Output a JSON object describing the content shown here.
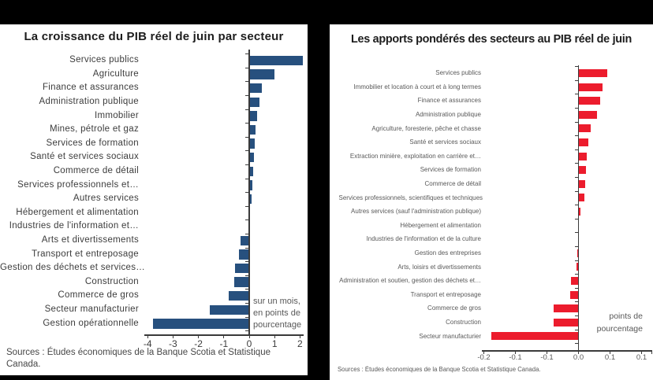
{
  "chart_data": [
    {
      "type": "bar",
      "orientation": "horizontal",
      "title": "La croissance du PIB réel de juin par secteur",
      "bar_color": "#27507E",
      "categories": [
        "Services publics",
        "Agriculture",
        "Finance et assurances",
        "Administration publique",
        "Immobilier",
        "Mines, pétrole et gaz",
        "Services de formation",
        "Santé et services sociaux",
        "Commerce de détail",
        "Services professionnels et…",
        "Autres services",
        "Hébergement et alimentation",
        "Industries de l'information et…",
        "Arts et divertissements",
        "Transport et entreposage",
        "Gestion des déchets et services…",
        "Construction",
        "Commerce de gros",
        "Secteur manufacturier",
        "Gestion opérationnelle"
      ],
      "values": [
        2.1,
        1.0,
        0.5,
        0.4,
        0.3,
        0.25,
        0.21,
        0.18,
        0.16,
        0.12,
        0.09,
        0.0,
        0.0,
        -0.35,
        -0.4,
        -0.57,
        -0.6,
        -0.8,
        -1.55,
        -3.8
      ],
      "xlim": [
        -4.2,
        2.2
      ],
      "grid": false,
      "x_ticks": [
        {
          "label": "-4",
          "value": -4
        },
        {
          "label": "-3",
          "value": -3
        },
        {
          "label": "-2",
          "value": -2
        },
        {
          "label": "-1",
          "value": -1
        },
        {
          "label": "0",
          "value": 0
        },
        {
          "label": "1",
          "value": 1
        },
        {
          "label": "2",
          "value": 2
        }
      ],
      "annotation_lines": [
        "sur un mois,",
        "en points de",
        "pourcentage"
      ],
      "source": "Sources : Études économiques de la Banque Scotia et Statistique Canada."
    },
    {
      "type": "bar",
      "orientation": "horizontal",
      "title": "Les apports pondérés des secteurs au PIB réel de juin",
      "bar_color": "#EC1C2D",
      "categories": [
        "Services publics",
        "Immobilier et location à court et à long termes",
        "Finance et assurances",
        "Administration publique",
        "Agriculture, foresterie, pêche et chasse",
        "Santé et services sociaux",
        "Extraction minière, exploitation en carrière et…",
        "Services de formation",
        "Commerce de détail",
        "Services professionnels, scientifiques et techniques",
        "Autres services (sauf l'administration publique)",
        "Hébergement et alimentation",
        "Industries de l'information et de la culture",
        "Gestion des entreprises",
        "Arts, loisirs et divertissements",
        "Administration et soutien, gestion des déchets et…",
        "Transport et entreposage",
        "Commerce de gros",
        "Construction",
        "Secteur manufacturier"
      ],
      "values": [
        0.046,
        0.038,
        0.034,
        0.029,
        0.019,
        0.015,
        0.013,
        0.012,
        0.01,
        0.009,
        0.003,
        0.0,
        0.0,
        -0.002,
        -0.003,
        -0.012,
        -0.013,
        -0.039,
        -0.04,
        -0.138
      ],
      "xlim": [
        -0.16,
        0.12
      ],
      "grid": false,
      "x_ticks": [
        {
          "label": "-0.2",
          "value": -0.15
        },
        {
          "label": "-0.1",
          "value": -0.1
        },
        {
          "label": "-0.1",
          "value": -0.05
        },
        {
          "label": "0.0",
          "value": 0.0
        },
        {
          "label": "0.1",
          "value": 0.05
        },
        {
          "label": "0.1",
          "value": 0.1
        }
      ],
      "annotation_lines": [
        "points de",
        "pourcentage"
      ],
      "source": "Sources : Études économiques de la Banque Scotia et Statistique Canada."
    }
  ]
}
